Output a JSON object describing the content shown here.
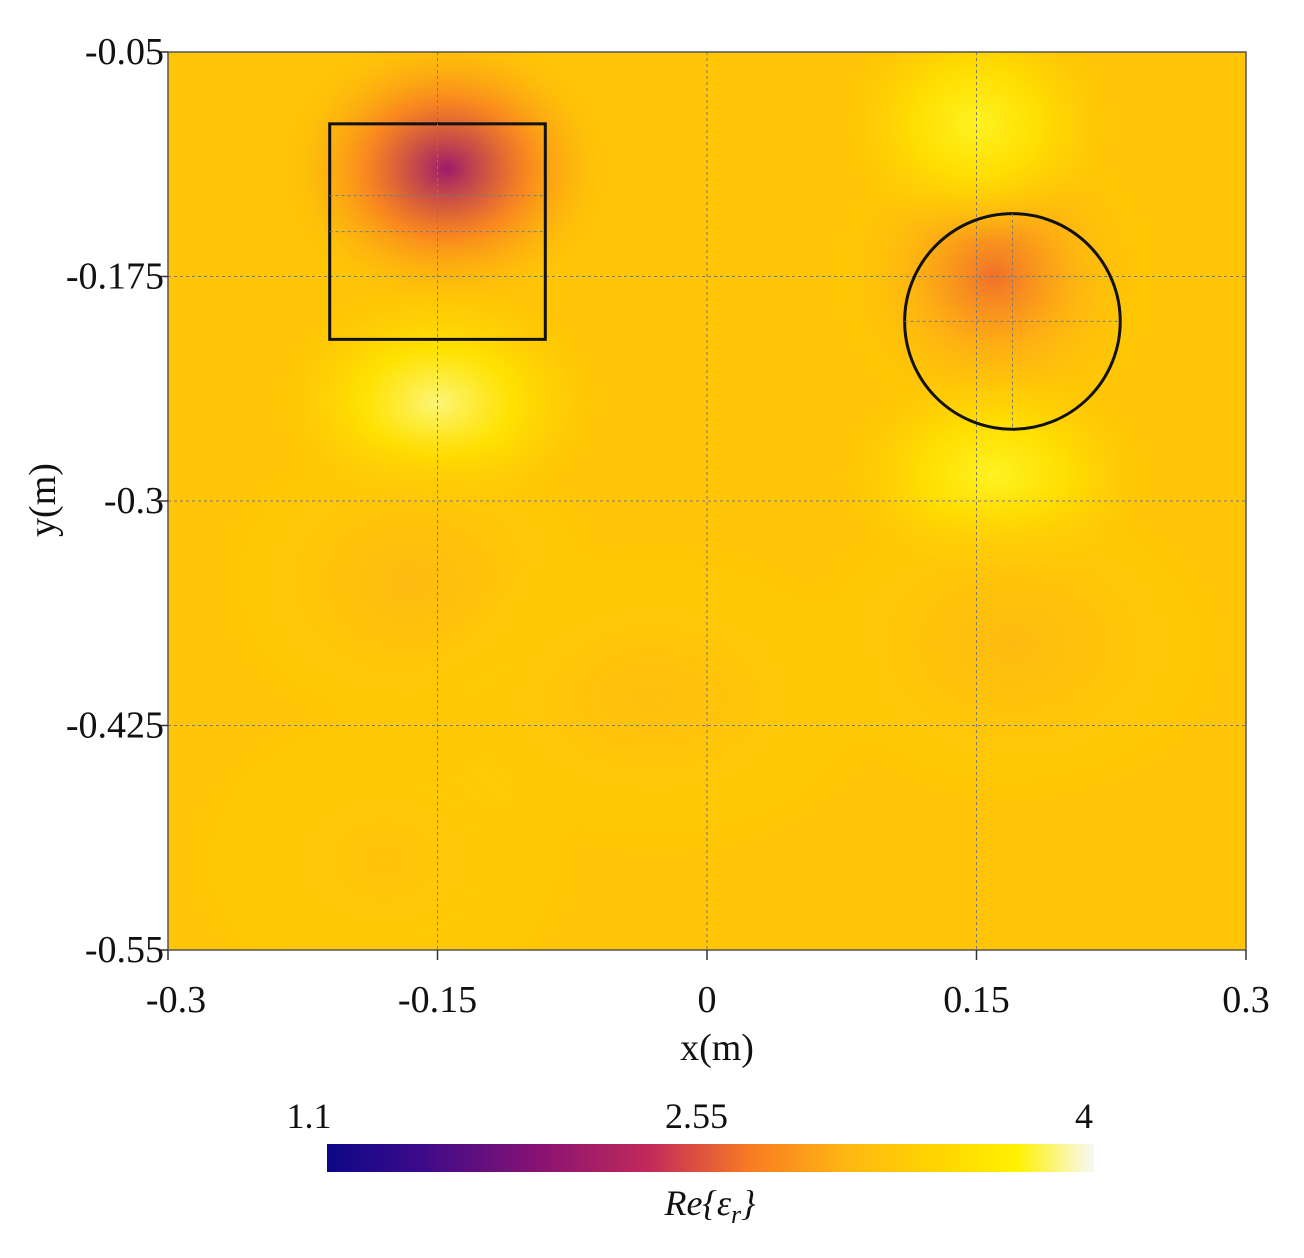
{
  "chart_data": {
    "type": "heatmap",
    "title": "",
    "xlabel": "x(m)",
    "ylabel": "y(m)",
    "xlim": [
      -0.3,
      0.3
    ],
    "ylim": [
      -0.55,
      -0.05
    ],
    "x_ticks": [
      -0.3,
      -0.15,
      0,
      0.15,
      0.3
    ],
    "x_tick_labels": [
      "-0.3",
      "-0.15",
      "0",
      "0.15",
      "0.3"
    ],
    "y_ticks": [
      -0.05,
      -0.175,
      -0.3,
      -0.425,
      -0.55
    ],
    "y_tick_labels": [
      "-0.05",
      "-0.175",
      "-0.3",
      "-0.425",
      "-0.55"
    ],
    "grid": true,
    "colormap": "plasma-like",
    "colors": {
      "background": "#ffc506",
      "low": "#0d0887",
      "mid": "#f87a24",
      "high": "#f8f8f8"
    },
    "colorbar": {
      "label": "Re{εr}",
      "label_main": "Re{ε",
      "label_sub": "r",
      "label_close": "}",
      "min": 1.1,
      "max": 4,
      "tick_values": [
        1.1,
        2.55,
        4
      ],
      "tick_labels": [
        "1.1",
        "2.55",
        "4"
      ],
      "position": "bottom"
    },
    "background_value": 3.35,
    "features": [
      {
        "x": -0.145,
        "y": -0.115,
        "value": 2.05,
        "sx": 0.045,
        "sy": 0.038
      },
      {
        "x": 0.16,
        "y": -0.175,
        "value": 2.65,
        "sx": 0.042,
        "sy": 0.04
      },
      {
        "x": -0.15,
        "y": -0.245,
        "value": 3.85,
        "sx": 0.042,
        "sy": 0.03
      },
      {
        "x": 0.16,
        "y": -0.285,
        "value": 3.75,
        "sx": 0.04,
        "sy": 0.028
      },
      {
        "x": 0.15,
        "y": -0.09,
        "value": 3.75,
        "sx": 0.035,
        "sy": 0.03
      },
      {
        "x": -0.165,
        "y": -0.345,
        "value": 3.1,
        "sx": 0.05,
        "sy": 0.04
      },
      {
        "x": 0.17,
        "y": -0.38,
        "value": 3.1,
        "sx": 0.055,
        "sy": 0.04
      },
      {
        "x": -0.03,
        "y": -0.41,
        "value": 3.15,
        "sx": 0.06,
        "sy": 0.04
      },
      {
        "x": -0.18,
        "y": -0.5,
        "value": 3.2,
        "sx": 0.05,
        "sy": 0.04
      }
    ],
    "annotations": [
      {
        "shape": "rectangle",
        "x0": -0.21,
        "x1": -0.09,
        "y0": -0.09,
        "y1": -0.21,
        "crosshair_x": -0.15,
        "crosshair_y": [
          -0.13,
          -0.15
        ]
      },
      {
        "shape": "circle",
        "cx": 0.17,
        "cy": -0.2,
        "r": 0.06
      }
    ]
  }
}
